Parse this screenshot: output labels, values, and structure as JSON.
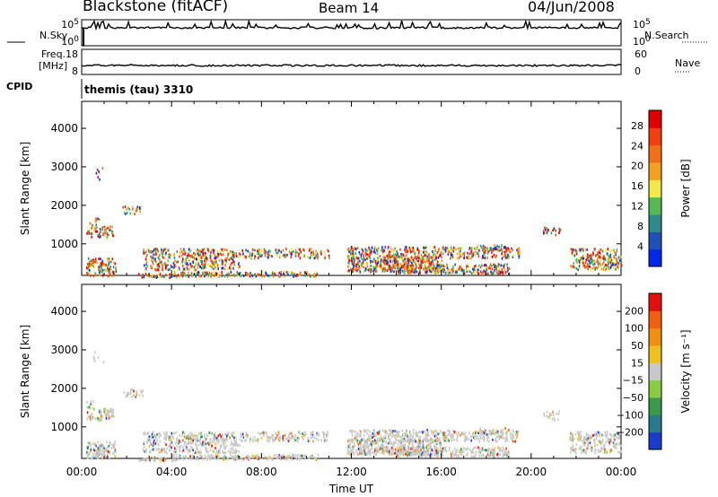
{
  "header": {
    "title": "Blackstone (fitACF)",
    "beam": "Beam 14",
    "date": "04/Jun/2008"
  },
  "labels": {
    "nsky": "N.Sky",
    "nsearch": "N.Search",
    "freq": "Freq.",
    "freq_unit": "[MHz]",
    "nave": "Nave",
    "cpid": "CPID",
    "cpid_value": "themis (tau) 3310"
  },
  "noise_ticks": {
    "left_top": "10^5",
    "left_bottom": "10^0",
    "right_top": "10^5",
    "right_bottom": "10^0"
  },
  "freq_ticks": {
    "left_top": "18",
    "left_bottom": "8",
    "right_top": "60",
    "right_bottom": "0"
  },
  "colors": {
    "power_scale": [
      "#0028e6",
      "#1f50b4",
      "#2e8a8a",
      "#55b855",
      "#f2e84a",
      "#f2a020",
      "#f07018",
      "#f04010",
      "#e00000"
    ],
    "velocity_scale": [
      "#1a3ccc",
      "#2a7a8c",
      "#3a9a4a",
      "#88cc44",
      "#c8c8c8",
      "#f0c020",
      "#f09010",
      "#f06010",
      "#e01010"
    ],
    "scatter_gray": "#c8c8c8"
  },
  "chart_data": [
    {
      "type": "heatmap",
      "name": "power",
      "xlabel": "",
      "ylabel": "Slant Range [km]",
      "ylim": [
        180,
        4700
      ],
      "yticks": [
        "1000",
        "2000",
        "3000",
        "4000"
      ],
      "ytick_values": [
        1000,
        2000,
        3000,
        4000
      ],
      "colorbar_label": "Power [dB]",
      "colorbar_ticks": [
        "4",
        "8",
        "12",
        "16",
        "20",
        "24",
        "28"
      ],
      "colorbar_range": [
        0,
        31
      ]
    },
    {
      "type": "heatmap",
      "name": "velocity",
      "xlabel": "Time UT",
      "ylabel": "Slant Range [km]",
      "ylim": [
        180,
        4700
      ],
      "yticks": [
        "1000",
        "2000",
        "3000",
        "4000"
      ],
      "ytick_values": [
        1000,
        2000,
        3000,
        4000
      ],
      "xticks": [
        "00:00",
        "04:00",
        "08:00",
        "12:00",
        "16:00",
        "20:00",
        "00:00"
      ],
      "colorbar_label": "Velocity [m s⁻¹]",
      "colorbar_ticks": [
        "200",
        "100",
        "50",
        "15",
        "−15",
        "−50",
        "−100",
        "−200"
      ]
    }
  ]
}
